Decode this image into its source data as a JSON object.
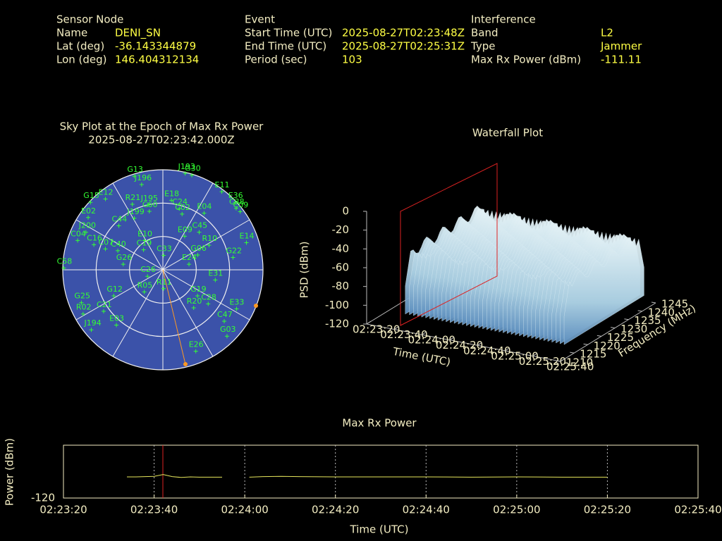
{
  "header": {
    "columns": [
      {
        "title": "Sensor Node",
        "rows": [
          [
            "Name",
            "DENI_SN"
          ],
          [
            "Lat (deg)",
            "-36.143344879"
          ],
          [
            "Lon (deg)",
            "146.404312134"
          ]
        ]
      },
      {
        "title": "Event",
        "rows": [
          [
            "Start Time (UTC)",
            "2025-08-27T02:23:48Z"
          ],
          [
            "End Time (UTC)",
            "2025-08-27T02:25:31Z"
          ],
          [
            "Period (sec)",
            "103"
          ]
        ]
      },
      {
        "title": "Interference",
        "rows": [
          [
            "Band",
            "L2"
          ],
          [
            "Type",
            "Jammer"
          ],
          [
            "Max Rx Power (dBm)",
            "-111.11"
          ]
        ]
      }
    ]
  },
  "chart_data": [
    {
      "type": "polar-scatter",
      "title": "Sky Plot at the Epoch of Max Rx Power",
      "subtitle": "2025-08-27T02:23:42.000Z",
      "rlim": [
        0,
        90
      ],
      "rticks": [
        0,
        30,
        60
      ],
      "color": "#33ff33",
      "disc_color": "#3b52a9",
      "satellites": [
        {
          "name": "G13",
          "azimuth": 343,
          "elevation": 2
        },
        {
          "name": "J196",
          "azimuth": 346,
          "elevation": 11
        },
        {
          "name": "J193",
          "azimuth": 13,
          "elevation": 1
        },
        {
          "name": "G30",
          "azimuth": 17,
          "elevation": 1
        },
        {
          "name": "E11",
          "azimuth": 37,
          "elevation": 2
        },
        {
          "name": "E36",
          "azimuth": 47,
          "elevation": 1
        },
        {
          "name": "C38",
          "azimuth": 50,
          "elevation": 4
        },
        {
          "name": "C09",
          "azimuth": 53,
          "elevation": 3
        },
        {
          "name": "G15",
          "azimuth": 313,
          "elevation": 1
        },
        {
          "name": "E12",
          "azimuth": 321,
          "elevation": 8
        },
        {
          "name": "R21",
          "azimuth": 335,
          "elevation": 25
        },
        {
          "name": "J195",
          "azimuth": 347,
          "elevation": 30
        },
        {
          "name": "E18",
          "azimuth": 7,
          "elevation": 27
        },
        {
          "name": "E02",
          "azimuth": 305,
          "elevation": 8
        },
        {
          "name": "C44",
          "azimuth": 315,
          "elevation": 34
        },
        {
          "name": "C60",
          "azimuth": 347,
          "elevation": 36
        },
        {
          "name": "C24",
          "azimuth": 15,
          "elevation": 33
        },
        {
          "name": "C02",
          "azimuth": 19,
          "elevation": 37
        },
        {
          "name": "E04",
          "azimuth": 36,
          "elevation": 27
        },
        {
          "name": "J199",
          "azimuth": 331,
          "elevation": 37
        },
        {
          "name": "J200",
          "azimuth": 296,
          "elevation": 13
        },
        {
          "name": "C04",
          "azimuth": 289,
          "elevation": 9
        },
        {
          "name": "C16",
          "azimuth": 290,
          "elevation": 24
        },
        {
          "name": "C07",
          "azimuth": 290,
          "elevation": 35
        },
        {
          "name": "C40",
          "azimuth": 293,
          "elevation": 46
        },
        {
          "name": "E10",
          "azimuth": 328,
          "elevation": 59
        },
        {
          "name": "C19",
          "azimuth": 316,
          "elevation": 65
        },
        {
          "name": "C45",
          "azimuth": 44,
          "elevation": 43
        },
        {
          "name": "E09",
          "azimuth": 33,
          "elevation": 54
        },
        {
          "name": "R10",
          "azimuth": 62,
          "elevation": 43
        },
        {
          "name": "G06",
          "azimuth": 67,
          "elevation": 56
        },
        {
          "name": "C33",
          "azimuth": 3,
          "elevation": 77
        },
        {
          "name": "E14",
          "azimuth": 72,
          "elevation": 11
        },
        {
          "name": "G22",
          "azimuth": 80,
          "elevation": 26
        },
        {
          "name": "E24",
          "azimuth": 78,
          "elevation": 66
        },
        {
          "name": "C58",
          "azimuth": 271,
          "elevation": 1
        },
        {
          "name": "G26",
          "azimuth": 278,
          "elevation": 54
        },
        {
          "name": "C26",
          "azimuth": 247,
          "elevation": 75
        },
        {
          "name": "R05",
          "azimuth": 220,
          "elevation": 64
        },
        {
          "name": "R11",
          "azimuth": 178,
          "elevation": 73
        },
        {
          "name": "E31",
          "azimuth": 101,
          "elevation": 42
        },
        {
          "name": "G19",
          "azimuth": 127,
          "elevation": 51
        },
        {
          "name": "C28",
          "azimuth": 127,
          "elevation": 39
        },
        {
          "name": "R20",
          "azimuth": 141,
          "elevation": 46
        },
        {
          "name": "E33",
          "azimuth": 118,
          "elevation": 15
        },
        {
          "name": "C47",
          "azimuth": 130,
          "elevation": 18
        },
        {
          "name": "G03",
          "azimuth": 136,
          "elevation": 7
        },
        {
          "name": "G12",
          "azimuth": 242,
          "elevation": 40
        },
        {
          "name": "C21",
          "azimuth": 235,
          "elevation": 25
        },
        {
          "name": "G25",
          "azimuth": 248,
          "elevation": 11
        },
        {
          "name": "R02",
          "azimuth": 241,
          "elevation": 8
        },
        {
          "name": "E03",
          "azimuth": 220,
          "elevation": 25
        },
        {
          "name": "J194",
          "azimuth": 230,
          "elevation": 6
        },
        {
          "name": "E26",
          "azimuth": 158,
          "elevation": 11
        }
      ]
    },
    {
      "type": "waterfall3d",
      "title": "Waterfall Plot",
      "xlabel": "Time (UTC)",
      "ylabel": "Frequency (MHz)",
      "zlabel": "PSD (dBm)",
      "xlim": [
        "02:23:20",
        "02:25:40"
      ],
      "xticks": [
        "02:23:20",
        "02:23:40",
        "02:24:00",
        "02:24:20",
        "02:24:40",
        "02:25:00",
        "02:25:20",
        "02:25:40"
      ],
      "ylim": [
        1210,
        1245
      ],
      "yticks": [
        1210,
        1215,
        1220,
        1225,
        1230,
        1235,
        1240,
        1245
      ],
      "zlim": [
        -120,
        0
      ],
      "zticks": [
        0,
        -20,
        -40,
        -60,
        -80,
        -100,
        -120
      ]
    },
    {
      "type": "line",
      "title": "Max Rx Power",
      "xlabel": "Time (UTC)",
      "ylabel": "Power (dBm)",
      "xlim": [
        "02:23:20",
        "02:25:40"
      ],
      "xticks": [
        "02:23:20",
        "02:23:40",
        "02:24:00",
        "02:24:20",
        "02:24:40",
        "02:25:00",
        "02:25:20",
        "02:25:40"
      ],
      "ylim": [
        -120,
        -100
      ],
      "yticks": [
        -120
      ],
      "grid": true,
      "x": [
        "02:23:34",
        "02:23:36",
        "02:23:38",
        "02:23:40",
        "02:23:42",
        "02:23:44",
        "02:23:46",
        "02:23:48",
        "02:23:50",
        "02:23:52",
        "02:23:55",
        "02:23:58",
        "02:24:01",
        "02:24:04",
        "02:24:08",
        "02:24:12",
        "02:24:20",
        "02:24:30",
        "02:24:40",
        "02:24:50",
        "02:25:00",
        "02:25:10",
        "02:25:20"
      ],
      "series": [
        {
          "color": "#e6e65c",
          "values": [
            -112.0,
            -112.0,
            -111.9,
            -111.8,
            -111.11,
            -111.9,
            -112.2,
            -112.0,
            -112.1,
            -112.1,
            -112.1,
            null,
            -112.1,
            -111.9,
            -111.8,
            -111.9,
            -112.0,
            -112.0,
            -112.0,
            -112.1,
            -112.0,
            -112.1,
            -112.1
          ]
        }
      ]
    }
  ]
}
